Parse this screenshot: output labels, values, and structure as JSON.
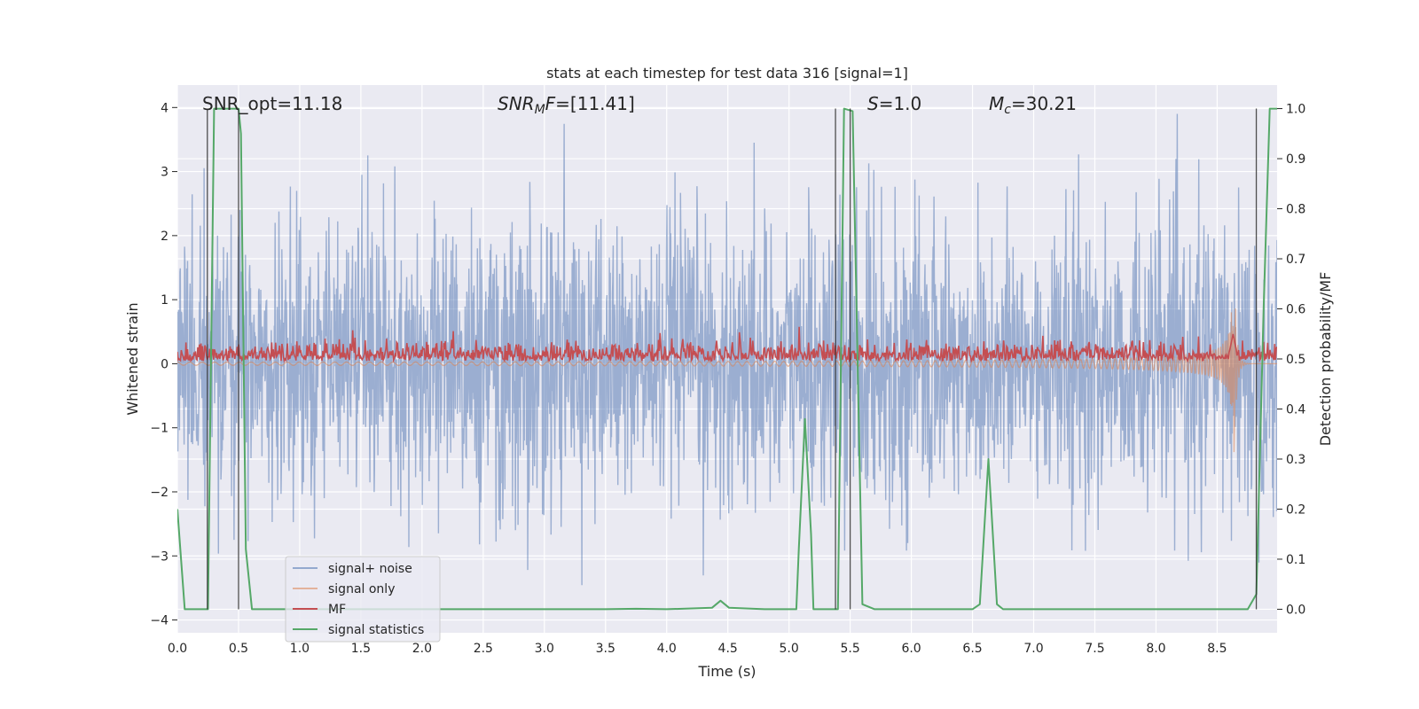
{
  "chart_data": {
    "type": "line",
    "title": "stats at each timestep for test data 316 [signal=1]",
    "xlabel": "Time (s)",
    "ylabel_left": "Whitened strain",
    "ylabel_right": "Detection probability/MF",
    "xlim": [
      0.0,
      8.99
    ],
    "ylim_left": [
      -4.2,
      4.35
    ],
    "ylim_right": [
      -0.047,
      1.047
    ],
    "x_ticks": [
      "0.0",
      "0.5",
      "1.0",
      "1.5",
      "2.0",
      "2.5",
      "3.0",
      "3.5",
      "4.0",
      "4.5",
      "5.0",
      "5.5",
      "6.0",
      "6.5",
      "7.0",
      "7.5",
      "8.0",
      "8.5"
    ],
    "y_left_ticks": [
      "4",
      "3",
      "2",
      "1",
      "0",
      "−1",
      "−2",
      "−3",
      "−4"
    ],
    "y_right_ticks": [
      "1.0",
      "0.9",
      "0.8",
      "0.7",
      "0.6",
      "0.5",
      "0.4",
      "0.3",
      "0.2",
      "0.1",
      "0.0"
    ],
    "grid": true,
    "legend_position": "lower-left",
    "annotations": {
      "snr_opt": "SNR_opt=11.18",
      "snr_mf_main": "SNR",
      "snr_mf_sub": "M",
      "snr_mf_suffix": "F",
      "snr_mf_value": "=[11.41]",
      "s_label": "S",
      "s_value": "=1.0",
      "mc_main": "M",
      "mc_sub": "c",
      "mc_value": "=30.21"
    },
    "series": [
      {
        "name": "signal+ noise",
        "color": "#4c72b0",
        "axis": "left",
        "approx_amplitude": 2.3,
        "x_range": [
          0.0,
          8.99
        ]
      },
      {
        "name": "signal only",
        "color": "#dd8452",
        "axis": "left",
        "description": "chirp growing toward merger at about 8.63 s",
        "peak_amplitude": 2.4
      },
      {
        "name": "MF",
        "color": "#c44e52",
        "axis": "right",
        "baseline": 0.5,
        "noise_amplitude": 0.02,
        "peak": [
          8.63,
          0.55
        ]
      },
      {
        "name": "signal statistics",
        "color": "#55a868",
        "axis": "right",
        "x": [
          0.0,
          0.06,
          0.25,
          0.3,
          0.5,
          0.52,
          0.56,
          0.61,
          1.5,
          2.5,
          3.5,
          3.75,
          4.0,
          4.37,
          4.44,
          4.51,
          4.8,
          5.06,
          5.08,
          5.13,
          5.18,
          5.2,
          5.32,
          5.4,
          5.45,
          5.52,
          5.6,
          5.7,
          6.0,
          6.5,
          6.56,
          6.63,
          6.7,
          6.75,
          7.5,
          8.0,
          8.5,
          8.75,
          8.82,
          8.88,
          8.93,
          8.99
        ],
        "y": [
          0.2,
          0.0,
          0.0,
          1.0,
          1.0,
          0.95,
          0.12,
          0.0,
          0.0,
          0.0,
          0.0,
          0.001,
          0.0,
          0.003,
          0.017,
          0.003,
          0.0,
          0.0,
          0.12,
          0.38,
          0.15,
          0.0,
          0.0,
          0.0,
          1.0,
          0.995,
          0.01,
          0.0,
          0.0,
          0.0,
          0.01,
          0.3,
          0.01,
          0.0,
          0.0,
          0.0,
          0.0,
          0.0,
          0.03,
          0.6,
          1.0,
          1.0
        ]
      }
    ],
    "vertical_markers": [
      {
        "x": 0.245,
        "y_range": [
          0.0,
          1.0
        ]
      },
      {
        "x": 0.5,
        "y_range": [
          0.0,
          1.0
        ]
      },
      {
        "x": 5.38,
        "y_range": [
          0.0,
          1.0
        ]
      },
      {
        "x": 5.5,
        "y_range": [
          0.0,
          1.0
        ]
      },
      {
        "x": 8.82,
        "y_range": [
          0.0,
          1.0
        ]
      }
    ]
  }
}
